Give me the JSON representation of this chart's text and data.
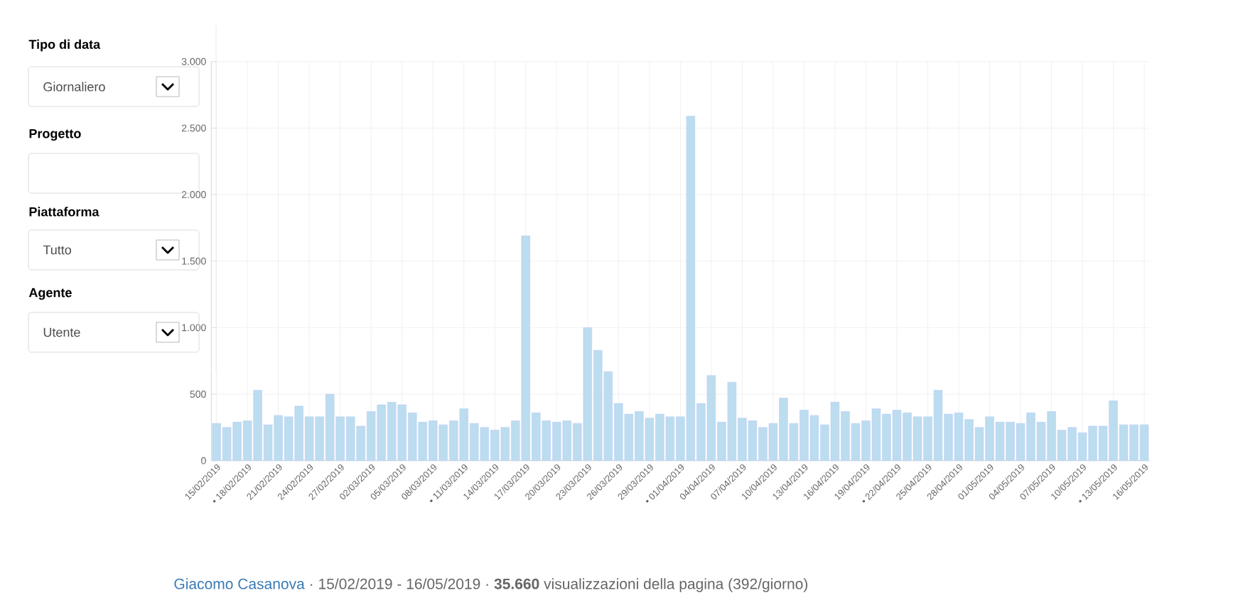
{
  "chart_data": {
    "type": "bar",
    "categories": [
      "15/02/2019",
      null,
      null,
      "• 18/02/2019",
      null,
      null,
      "21/02/2019",
      null,
      null,
      "24/02/2019",
      null,
      null,
      "27/02/2019",
      null,
      null,
      "02/03/2019",
      null,
      null,
      "05/03/2019",
      null,
      null,
      "08/03/2019",
      null,
      null,
      "• 11/03/2019",
      null,
      null,
      "14/03/2019",
      null,
      null,
      "17/03/2019",
      null,
      null,
      "20/03/2019",
      null,
      null,
      "23/03/2019",
      null,
      null,
      "26/03/2019",
      null,
      null,
      "29/03/2019",
      null,
      null,
      "• 01/04/2019",
      null,
      null,
      "04/04/2019",
      null,
      null,
      "07/04/2019",
      null,
      null,
      "10/04/2019",
      null,
      null,
      "13/04/2019",
      null,
      null,
      "16/04/2019",
      null,
      null,
      "19/04/2019",
      null,
      null,
      "• 22/04/2019",
      null,
      null,
      "25/04/2019",
      null,
      null,
      "28/04/2019",
      null,
      null,
      "01/05/2019",
      null,
      null,
      "04/05/2019",
      null,
      null,
      "07/05/2019",
      null,
      null,
      "10/05/2019",
      null,
      null,
      "• 13/05/2019",
      null,
      null,
      "16/05/2019"
    ],
    "values": [
      280,
      250,
      290,
      300,
      530,
      270,
      340,
      330,
      410,
      330,
      330,
      500,
      330,
      330,
      260,
      370,
      420,
      440,
      420,
      360,
      290,
      300,
      270,
      300,
      390,
      280,
      250,
      230,
      250,
      300,
      1690,
      360,
      300,
      290,
      300,
      280,
      1000,
      830,
      670,
      430,
      350,
      370,
      320,
      350,
      330,
      330,
      2590,
      430,
      640,
      290,
      590,
      320,
      300,
      250,
      280,
      470,
      280,
      380,
      340,
      270,
      440,
      370,
      280,
      300,
      390,
      350,
      380,
      360,
      330,
      330,
      530,
      350,
      360,
      310,
      250,
      330,
      290,
      290,
      280,
      360,
      290,
      370,
      230,
      250,
      210,
      260,
      260,
      450,
      270,
      270,
      270
    ],
    "color": "#bcdcef",
    "ylim": [
      0,
      3000
    ],
    "yticks": [
      0,
      500,
      {
        "value": 1000,
        "label": "1.000"
      },
      {
        "value": 1500,
        "label": "1.500"
      },
      {
        "value": 2000,
        "label": "2.000"
      },
      {
        "value": 2500,
        "label": "2.500"
      },
      {
        "value": 3000,
        "label": "3.000"
      }
    ],
    "grid": true,
    "annotations": [
      "Tipo di data",
      "Giornaliero",
      "Progetto",
      "Piattaforma",
      "Tutto",
      "Agente",
      "Utente",
      "Giacomo Casanova",
      "· 15/02/2019 - 16/05/2019 · **35.660** visualizzazioni della pagina (392/giorno)"
    ]
  }
}
